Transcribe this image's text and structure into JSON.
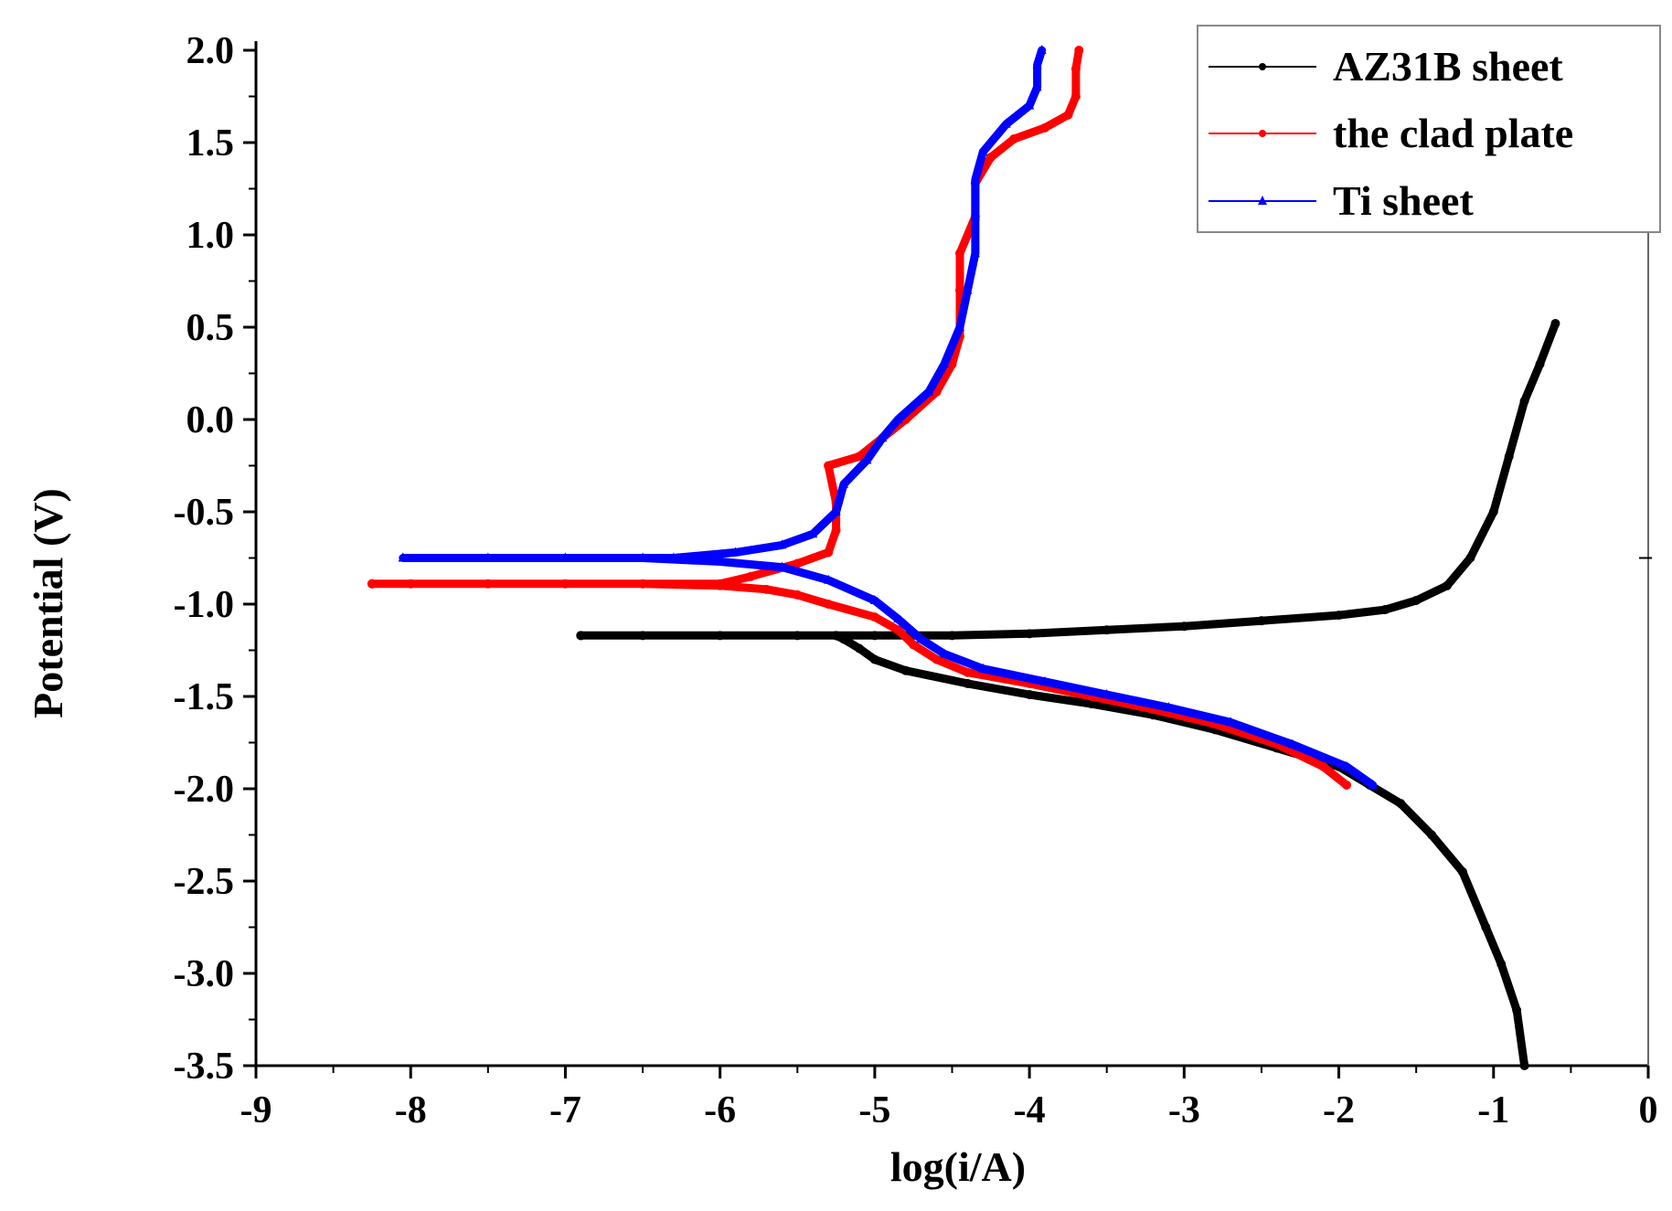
{
  "chart_data": {
    "type": "line",
    "title": "",
    "xlabel": "log(i/A)",
    "ylabel": "Potential (V)",
    "xlim": [
      -9,
      0
    ],
    "ylim": [
      -3.5,
      2.0
    ],
    "x_ticks": [
      -9,
      -8,
      -7,
      -6,
      -5,
      -4,
      -3,
      -2,
      -1,
      0
    ],
    "x_tick_labels": [
      "-9",
      "-8",
      "-7",
      "-6",
      "-5",
      "-4",
      "-3",
      "-2",
      "-1",
      "0"
    ],
    "y_ticks": [
      2.0,
      1.5,
      1.0,
      0.5,
      0.0,
      -0.5,
      -1.0,
      -1.5,
      -2.0,
      -2.5,
      -3.0,
      -3.5
    ],
    "y_tick_labels": [
      "2.0",
      "1.5",
      "1.0",
      "0.5",
      "0.0",
      "-0.5",
      "-1.0",
      "-1.5",
      "-2.0",
      "-2.5",
      "-3.0",
      "-3.5"
    ],
    "legend_position": "top-right",
    "series": [
      {
        "name": "AZ31B sheet",
        "color": "#000000",
        "marker": "dot",
        "points": [
          [
            -0.8,
            -3.5
          ],
          [
            -0.85,
            -3.2
          ],
          [
            -0.95,
            -2.95
          ],
          [
            -1.05,
            -2.75
          ],
          [
            -1.2,
            -2.45
          ],
          [
            -1.4,
            -2.25
          ],
          [
            -1.6,
            -2.08
          ],
          [
            -1.8,
            -1.98
          ],
          [
            -2.0,
            -1.88
          ],
          [
            -2.4,
            -1.78
          ],
          [
            -2.8,
            -1.68
          ],
          [
            -3.2,
            -1.6
          ],
          [
            -3.6,
            -1.54
          ],
          [
            -4.0,
            -1.49
          ],
          [
            -4.4,
            -1.43
          ],
          [
            -4.8,
            -1.36
          ],
          [
            -5.0,
            -1.3
          ],
          [
            -5.1,
            -1.24
          ],
          [
            -5.2,
            -1.19
          ],
          [
            -5.25,
            -1.17
          ],
          [
            -5.5,
            -1.17
          ],
          [
            -6.0,
            -1.17
          ],
          [
            -6.5,
            -1.17
          ],
          [
            -6.9,
            -1.17
          ],
          [
            -6.9,
            -1.17
          ],
          [
            -5.25,
            -1.17
          ],
          [
            -5.0,
            -1.17
          ],
          [
            -4.5,
            -1.17
          ],
          [
            -4.0,
            -1.16
          ],
          [
            -3.5,
            -1.14
          ],
          [
            -3.0,
            -1.12
          ],
          [
            -2.5,
            -1.09
          ],
          [
            -2.0,
            -1.06
          ],
          [
            -1.7,
            -1.03
          ],
          [
            -1.5,
            -0.98
          ],
          [
            -1.3,
            -0.9
          ],
          [
            -1.15,
            -0.75
          ],
          [
            -1.0,
            -0.5
          ],
          [
            -0.9,
            -0.2
          ],
          [
            -0.8,
            0.1
          ],
          [
            -0.7,
            0.3
          ],
          [
            -0.6,
            0.52
          ]
        ]
      },
      {
        "name": "the clad plate",
        "color": "#ff0000",
        "marker": "dot",
        "points": [
          [
            -1.95,
            -1.98
          ],
          [
            -2.1,
            -1.88
          ],
          [
            -2.4,
            -1.76
          ],
          [
            -2.8,
            -1.65
          ],
          [
            -3.2,
            -1.57
          ],
          [
            -3.6,
            -1.5
          ],
          [
            -4.0,
            -1.43
          ],
          [
            -4.4,
            -1.37
          ],
          [
            -4.6,
            -1.3
          ],
          [
            -4.75,
            -1.22
          ],
          [
            -4.85,
            -1.14
          ],
          [
            -5.0,
            -1.07
          ],
          [
            -5.3,
            -1.0
          ],
          [
            -5.5,
            -0.95
          ],
          [
            -5.7,
            -0.92
          ],
          [
            -6.0,
            -0.9
          ],
          [
            -6.5,
            -0.89
          ],
          [
            -7.0,
            -0.89
          ],
          [
            -7.5,
            -0.89
          ],
          [
            -8.0,
            -0.89
          ],
          [
            -8.25,
            -0.89
          ],
          [
            -8.25,
            -0.89
          ],
          [
            -6.0,
            -0.89
          ],
          [
            -5.8,
            -0.85
          ],
          [
            -5.5,
            -0.78
          ],
          [
            -5.3,
            -0.72
          ],
          [
            -5.25,
            -0.6
          ],
          [
            -5.25,
            -0.45
          ],
          [
            -5.3,
            -0.25
          ],
          [
            -5.1,
            -0.2
          ],
          [
            -4.95,
            -0.1
          ],
          [
            -4.8,
            0.0
          ],
          [
            -4.6,
            0.15
          ],
          [
            -4.5,
            0.3
          ],
          [
            -4.45,
            0.45
          ],
          [
            -4.45,
            0.7
          ],
          [
            -4.45,
            0.9
          ],
          [
            -4.35,
            1.1
          ],
          [
            -4.35,
            1.28
          ],
          [
            -4.25,
            1.42
          ],
          [
            -4.1,
            1.52
          ],
          [
            -3.9,
            1.58
          ],
          [
            -3.75,
            1.65
          ],
          [
            -3.7,
            1.75
          ],
          [
            -3.7,
            1.9
          ],
          [
            -3.68,
            2.0
          ]
        ]
      },
      {
        "name": "Ti sheet",
        "color": "#0000ff",
        "marker": "triangle",
        "points": [
          [
            -1.78,
            -1.98
          ],
          [
            -1.95,
            -1.88
          ],
          [
            -2.3,
            -1.76
          ],
          [
            -2.7,
            -1.64
          ],
          [
            -3.1,
            -1.56
          ],
          [
            -3.5,
            -1.49
          ],
          [
            -3.9,
            -1.42
          ],
          [
            -4.3,
            -1.35
          ],
          [
            -4.55,
            -1.27
          ],
          [
            -4.7,
            -1.19
          ],
          [
            -4.85,
            -1.08
          ],
          [
            -5.0,
            -0.98
          ],
          [
            -5.3,
            -0.87
          ],
          [
            -5.6,
            -0.8
          ],
          [
            -6.0,
            -0.77
          ],
          [
            -6.5,
            -0.75
          ],
          [
            -7.0,
            -0.75
          ],
          [
            -7.5,
            -0.75
          ],
          [
            -8.05,
            -0.75
          ],
          [
            -8.05,
            -0.75
          ],
          [
            -6.3,
            -0.75
          ],
          [
            -5.9,
            -0.72
          ],
          [
            -5.6,
            -0.68
          ],
          [
            -5.4,
            -0.62
          ],
          [
            -5.25,
            -0.5
          ],
          [
            -5.2,
            -0.35
          ],
          [
            -5.05,
            -0.22
          ],
          [
            -4.95,
            -0.1
          ],
          [
            -4.85,
            0.0
          ],
          [
            -4.65,
            0.15
          ],
          [
            -4.55,
            0.3
          ],
          [
            -4.45,
            0.5
          ],
          [
            -4.4,
            0.7
          ],
          [
            -4.35,
            0.9
          ],
          [
            -4.35,
            1.1
          ],
          [
            -4.35,
            1.3
          ],
          [
            -4.3,
            1.45
          ],
          [
            -4.15,
            1.6
          ],
          [
            -4.0,
            1.7
          ],
          [
            -3.95,
            1.8
          ],
          [
            -3.95,
            1.92
          ],
          [
            -3.92,
            2.0
          ]
        ]
      }
    ]
  }
}
